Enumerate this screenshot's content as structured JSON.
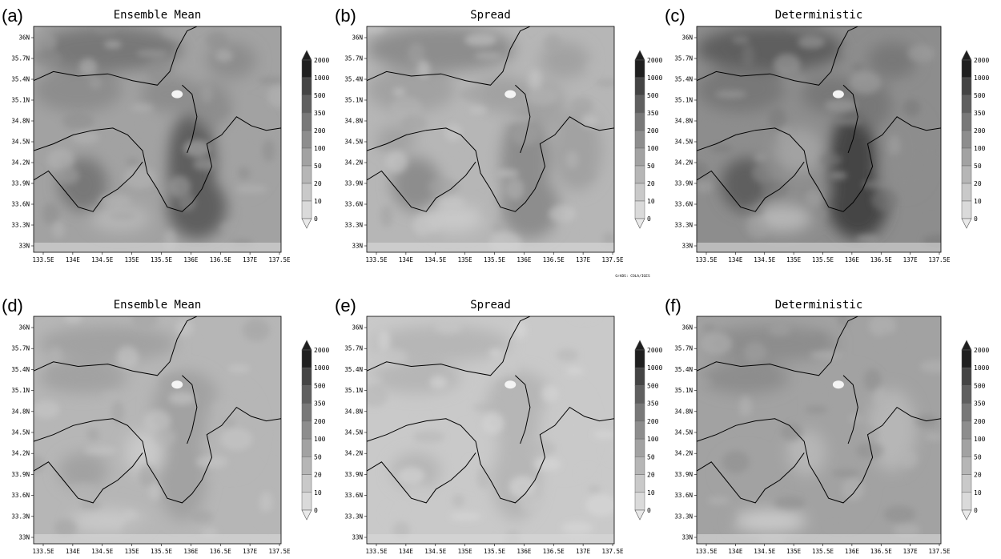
{
  "figure": {
    "credit": "GrADS: COLA/IGES",
    "lat_labels": [
      "36N",
      "35.7N",
      "35.4N",
      "35.1N",
      "34.8N",
      "34.5N",
      "34.2N",
      "33.9N",
      "33.6N",
      "33.3N",
      "33N"
    ],
    "lon_labels": [
      "133.5E",
      "134E",
      "134.5E",
      "135E",
      "135.5E",
      "136E",
      "136.5E",
      "137E",
      "137.5E"
    ],
    "colorbar_levels": [
      "0",
      "10",
      "20",
      "50",
      "100",
      "200",
      "350",
      "500",
      "1000",
      "2000"
    ],
    "colorbar_shades": [
      "#e9e9e9",
      "#dadada",
      "#c9c9c9",
      "#b6b6b6",
      "#a2a2a2",
      "#8d8d8d",
      "#787878",
      "#5f5f5f",
      "#444444",
      "#1f1f1f"
    ],
    "panels": [
      {
        "letter": "(a)",
        "title": "Ensemble Mean",
        "intensity": 0.85
      },
      {
        "letter": "(b)",
        "title": "Spread",
        "intensity": 0.6
      },
      {
        "letter": "(c)",
        "title": "Deterministic",
        "intensity": 0.95
      },
      {
        "letter": "(d)",
        "title": "Ensemble Mean",
        "intensity": 0.6
      },
      {
        "letter": "(e)",
        "title": "Spread",
        "intensity": 0.35
      },
      {
        "letter": "(f)",
        "title": "Deterministic",
        "intensity": 0.75
      }
    ]
  }
}
